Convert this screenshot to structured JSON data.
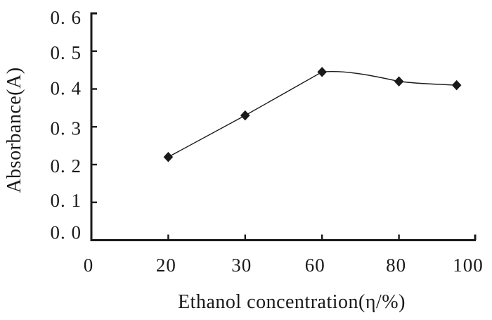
{
  "figure": {
    "background": "#ffffff",
    "ink_color": "#1a1a1a"
  },
  "chart_data": {
    "type": "line",
    "title": "",
    "xlabel": "Ethanol concentration(η/%)",
    "ylabel": "Absorbance(A)",
    "x_axis_type": "categorical-equal-spacing",
    "x_tick_labels": [
      "0",
      "20",
      "30",
      "60",
      "80",
      "100"
    ],
    "x_tick_values": [
      0,
      20,
      30,
      60,
      80,
      100
    ],
    "y_tick_labels": [
      "0. 0",
      "0. 1",
      "0. 2",
      "0. 3",
      "0. 4",
      "0. 5",
      "0. 6"
    ],
    "y_tick_values": [
      0.0,
      0.1,
      0.2,
      0.3,
      0.4,
      0.5,
      0.6
    ],
    "ylim": [
      0.0,
      0.6
    ],
    "grid": false,
    "legend": false,
    "series": [
      {
        "name": "Absorbance",
        "marker": "filled-diamond",
        "line_style": "solid-thin",
        "x": [
          20,
          30,
          60,
          80,
          95
        ],
        "y": [
          0.22,
          0.33,
          0.445,
          0.42,
          0.41
        ]
      }
    ]
  }
}
